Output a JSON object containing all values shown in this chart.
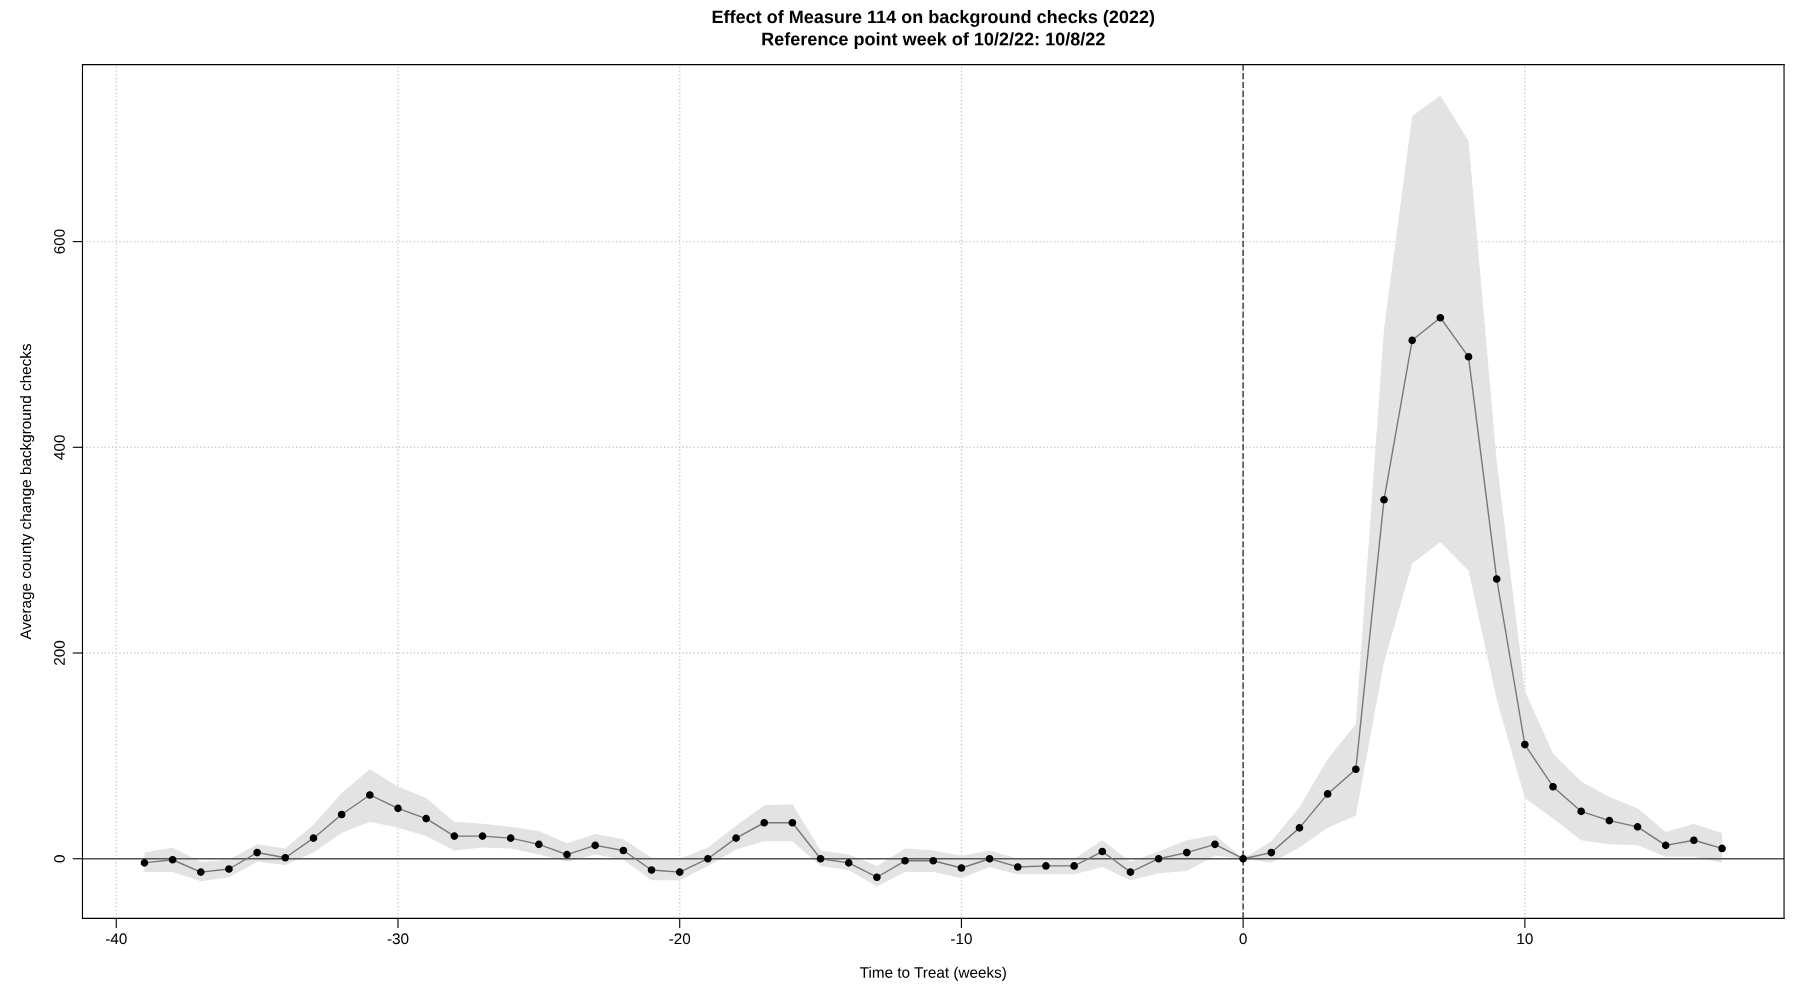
{
  "chart_data": {
    "type": "line",
    "title": "Effect of Measure 114 on background checks (2022)\nReference point week of 10/2/22: 10/8/22",
    "xlabel": "Time to Treat (weeks)",
    "ylabel": "Average county change background checks",
    "x": [
      -39,
      -38,
      -37,
      -36,
      -35,
      -34,
      -33,
      -32,
      -31,
      -30,
      -29,
      -28,
      -27,
      -26,
      -25,
      -24,
      -23,
      -22,
      -21,
      -20,
      -19,
      -18,
      -17,
      -16,
      -15,
      -14,
      -13,
      -12,
      -11,
      -10,
      -9,
      -8,
      -7,
      -6,
      -5,
      -4,
      -3,
      -2,
      -1,
      0,
      1,
      2,
      3,
      4,
      5,
      6,
      7,
      8,
      9,
      10,
      11,
      12,
      13,
      14,
      15,
      16,
      17
    ],
    "series": [
      {
        "color": "#777777",
        "values": [
          -4,
          -1,
          -13,
          -10,
          6,
          1,
          20,
          43,
          62,
          49,
          39,
          22,
          22,
          20,
          14,
          4,
          13,
          8,
          -11,
          -13,
          0,
          20,
          35,
          35,
          0,
          -4,
          -18,
          -2,
          -2,
          -9,
          0,
          -8,
          -7,
          -7,
          7,
          -13,
          0,
          6,
          14,
          0,
          6,
          30,
          63,
          87,
          349,
          504,
          526,
          488,
          272,
          111,
          70,
          46,
          37,
          31,
          13,
          18,
          10
        ],
        "lower": [
          -13,
          -13,
          -22,
          -18,
          -3,
          -6,
          6,
          25,
          36,
          30,
          22,
          8,
          11,
          10,
          4,
          -3,
          4,
          -1,
          -21,
          -21,
          -7,
          9,
          17,
          17,
          -7,
          -11,
          -27,
          -13,
          -13,
          -19,
          -8,
          -15,
          -15,
          -15,
          -8,
          -21,
          -14,
          -12,
          3,
          0,
          -4,
          11,
          30,
          42,
          191,
          287,
          308,
          280,
          155,
          59,
          39,
          18,
          14,
          13,
          2,
          2,
          -4
        ],
        "upper": [
          6,
          11,
          -3,
          -1,
          14,
          10,
          33,
          64,
          87,
          70,
          59,
          36,
          34,
          31,
          27,
          15,
          24,
          19,
          1,
          0,
          11,
          32,
          52,
          53,
          8,
          4,
          -7,
          10,
          8,
          3,
          8,
          0,
          0,
          0,
          18,
          -3,
          7,
          18,
          23,
          0,
          17,
          50,
          97,
          131,
          515,
          722,
          742,
          698,
          387,
          163,
          102,
          75,
          60,
          49,
          26,
          34,
          25
        ]
      }
    ],
    "xlim": [
      -41.2,
      19.2
    ],
    "ylim": [
      -58,
      772
    ],
    "xticks": [
      -40,
      -30,
      -20,
      -10,
      0,
      10
    ],
    "yticks": [
      0,
      200,
      400,
      600
    ],
    "grid": true,
    "marker": "circle",
    "line_style": "solid",
    "ref_lines": [
      {
        "axis": "x",
        "value": 0,
        "label": null,
        "color": "#555555",
        "line_style": "dashed"
      },
      {
        "axis": "y",
        "value": 0,
        "label": null,
        "color": "#555555",
        "line_style": "solid"
      }
    ]
  }
}
